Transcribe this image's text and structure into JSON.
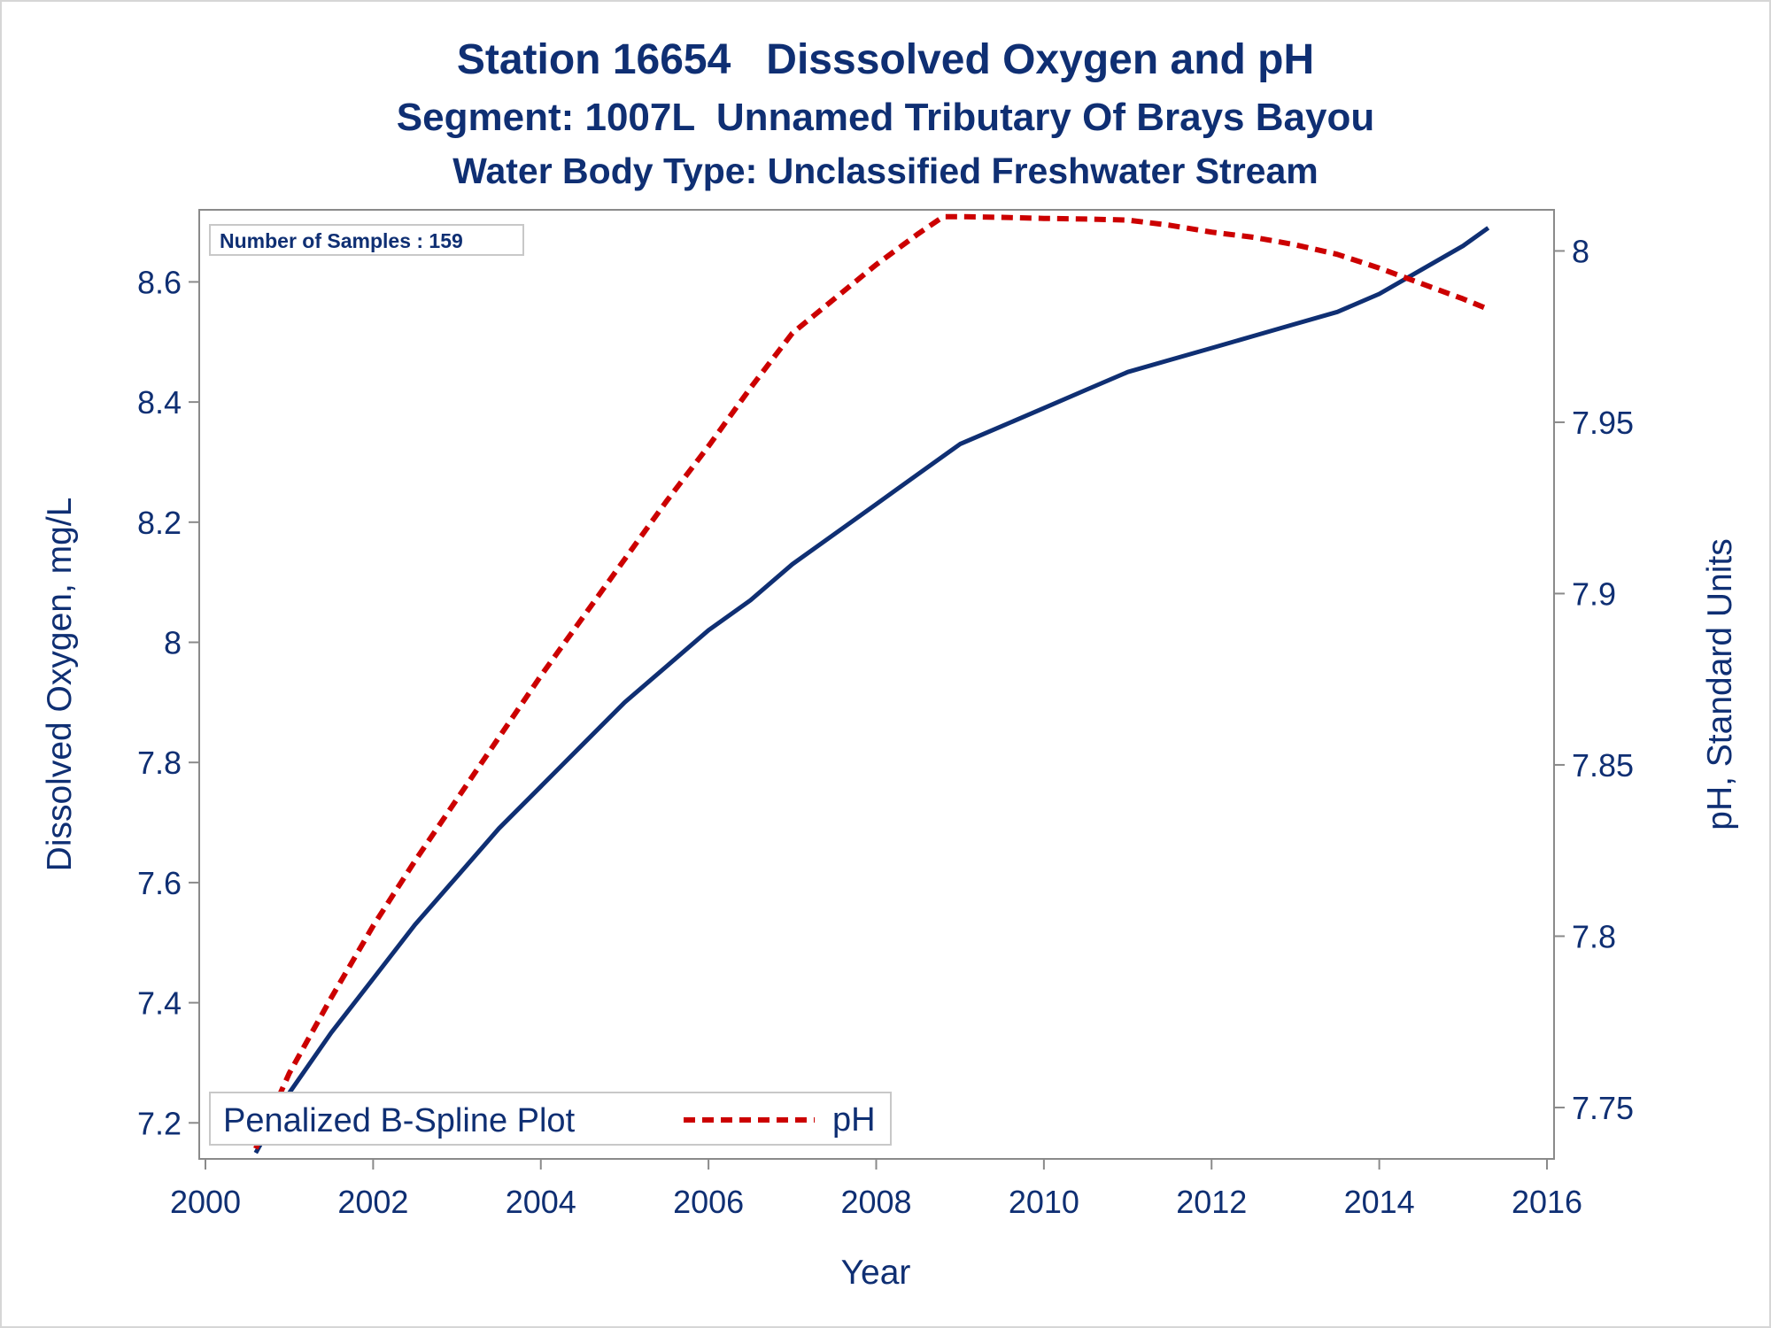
{
  "titles": {
    "line1": "Station 16654   Disssolved Oxygen and pH",
    "line2": "Segment: 1007L  Unnamed Tributary Of Brays Bayou",
    "line3": "Water Body Type: Unclassified Freshwater Stream"
  },
  "inset": {
    "text": "Number of Samples : 159"
  },
  "legend": {
    "title": "Penalized B-Spline Plot",
    "entries": [
      {
        "name": "pH",
        "color": "#cc0000",
        "style": "dashed"
      }
    ]
  },
  "chart_data": {
    "type": "line",
    "xlabel": "Year",
    "ylabel_left": "Dissolved Oxygen, mg/L",
    "ylabel_right": "pH, Standard Units",
    "xlim": [
      2000,
      2016
    ],
    "xticks": [
      2000,
      2002,
      2004,
      2006,
      2008,
      2010,
      2012,
      2014,
      2016
    ],
    "ylim_left": [
      7.14,
      8.72
    ],
    "yticks_left": [
      7.2,
      7.4,
      7.6,
      7.8,
      8,
      8.2,
      8.4,
      8.6
    ],
    "ylim_right": [
      7.735,
      8.012
    ],
    "yticks_right": [
      7.75,
      7.8,
      7.85,
      7.9,
      7.95,
      8
    ],
    "legend_position": "bottom-left",
    "grid": false,
    "series": [
      {
        "key": "do",
        "axis": "left",
        "color": "#0f2f73",
        "style": "solid",
        "x": [
          2000.6,
          2001.0,
          2001.5,
          2002.0,
          2002.5,
          2003.0,
          2003.5,
          2004.0,
          2004.5,
          2005.0,
          2005.5,
          2006.0,
          2006.5,
          2007.0,
          2007.5,
          2008.0,
          2008.5,
          2009.0,
          2009.5,
          2010.0,
          2010.5,
          2011.0,
          2011.5,
          2012.0,
          2012.5,
          2013.0,
          2013.5,
          2014.0,
          2014.5,
          2015.0,
          2015.3
        ],
        "y": [
          7.15,
          7.25,
          7.35,
          7.44,
          7.53,
          7.61,
          7.69,
          7.76,
          7.83,
          7.9,
          7.96,
          8.02,
          8.07,
          8.13,
          8.18,
          8.23,
          8.28,
          8.33,
          8.36,
          8.39,
          8.42,
          8.45,
          8.47,
          8.49,
          8.51,
          8.53,
          8.55,
          8.58,
          8.62,
          8.66,
          8.69
        ]
      },
      {
        "key": "ph",
        "axis": "right",
        "color": "#cc0000",
        "style": "dashed",
        "x": [
          2000.6,
          2001.0,
          2001.5,
          2002.0,
          2002.5,
          2003.0,
          2003.5,
          2004.0,
          2004.5,
          2005.0,
          2005.5,
          2006.0,
          2006.5,
          2007.0,
          2007.5,
          2008.0,
          2008.5,
          2008.8,
          2009.0,
          2009.5,
          2010.0,
          2010.5,
          2011.0,
          2011.5,
          2012.0,
          2012.5,
          2013.0,
          2013.5,
          2014.0,
          2014.5,
          2015.0,
          2015.3
        ],
        "y": [
          7.738,
          7.76,
          7.782,
          7.803,
          7.822,
          7.84,
          7.858,
          7.876,
          7.893,
          7.91,
          7.927,
          7.943,
          7.96,
          7.976,
          7.986,
          7.996,
          8.005,
          8.01,
          8.01,
          8.0098,
          8.0095,
          8.0093,
          8.009,
          8.0075,
          8.0055,
          8.004,
          8.0018,
          7.999,
          7.995,
          7.9905,
          7.986,
          7.983
        ]
      }
    ]
  }
}
